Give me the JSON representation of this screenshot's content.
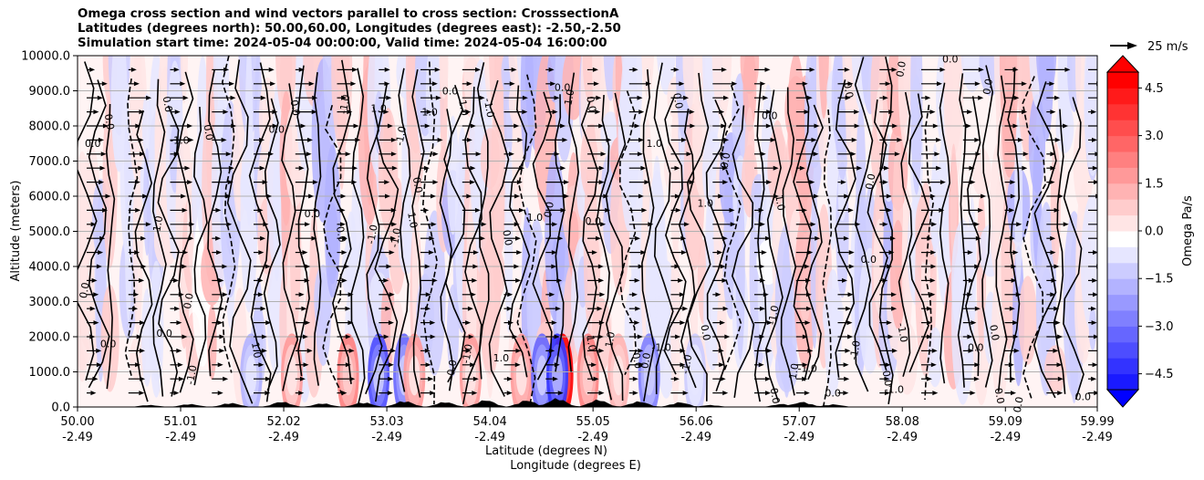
{
  "chart_data": {
    "type": "heatmap",
    "title_lines": [
      "Omega cross section and wind vectors parallel to cross section: CrosssectionA",
      "Latitudes (degrees north): 50.00,60.00, Longitudes (degrees east): -2.50,-2.50",
      "Simulation start time: 2024-05-04 00:00:00, Valid time: 2024-05-04 16:00:00"
    ],
    "ylabel": "Altitude (meters)",
    "xlabel_lat": "Latitude (degrees N)",
    "xlabel_lon": "Longitude (degrees E)",
    "ylim": [
      0,
      10000
    ],
    "xlim": [
      50.0,
      59.99
    ],
    "y_ticks": [
      "0.0",
      "1000.0",
      "2000.0",
      "3000.0",
      "4000.0",
      "5000.0",
      "6000.0",
      "7000.0",
      "8000.0",
      "9000.0",
      "10000.0"
    ],
    "y_tick_values": [
      0,
      1000,
      2000,
      3000,
      4000,
      5000,
      6000,
      7000,
      8000,
      9000,
      10000
    ],
    "x_ticks": [
      {
        "lat": "50.00",
        "lon": "-2.49",
        "v": 50.0
      },
      {
        "lat": "51.01",
        "lon": "-2.49",
        "v": 51.01
      },
      {
        "lat": "52.02",
        "lon": "-2.49",
        "v": 52.02
      },
      {
        "lat": "53.03",
        "lon": "-2.49",
        "v": 53.03
      },
      {
        "lat": "54.04",
        "lon": "-2.49",
        "v": 54.04
      },
      {
        "lat": "55.05",
        "lon": "-2.49",
        "v": 55.05
      },
      {
        "lat": "56.06",
        "lon": "-2.49",
        "v": 56.06
      },
      {
        "lat": "57.07",
        "lon": "-2.49",
        "v": 57.07
      },
      {
        "lat": "58.08",
        "lon": "-2.49",
        "v": 58.08
      },
      {
        "lat": "59.09",
        "lon": "-2.49",
        "v": 59.09
      },
      {
        "lat": "59.99",
        "lon": "-2.49",
        "v": 59.99
      }
    ],
    "grid": "horizontal",
    "colormap": "bwr",
    "colorbar": {
      "label": "Omega Pa/s",
      "range": [
        -5.0,
        5.0
      ],
      "ticks": [
        "4.5",
        "3.0",
        "1.5",
        "0.0",
        "−1.5",
        "−3.0",
        "−4.5"
      ],
      "tick_values": [
        4.5,
        3.0,
        1.5,
        0.0,
        -1.5,
        -3.0,
        -4.5
      ],
      "extend": "both"
    },
    "quiver_key": "25 m/s",
    "contour_levels": [
      -1.0,
      0.0,
      1.0
    ],
    "contour_labels": [
      {
        "text": "0.0",
        "lat": 50.15,
        "alt": 7400
      },
      {
        "text": "0.0",
        "lat": 50.28,
        "alt": 8100
      },
      {
        "text": "0.0",
        "lat": 50.1,
        "alt": 3300
      },
      {
        "text": "0.0",
        "lat": 50.3,
        "alt": 1700
      },
      {
        "text": "1.0",
        "lat": 50.82,
        "alt": 5200
      },
      {
        "text": "0.0",
        "lat": 50.85,
        "alt": 8600
      },
      {
        "text": "-1.0",
        "lat": 51.0,
        "alt": 7500
      },
      {
        "text": "0.0",
        "lat": 51.25,
        "alt": 7800
      },
      {
        "text": "0.0",
        "lat": 51.12,
        "alt": 3000
      },
      {
        "text": "0.0",
        "lat": 50.85,
        "alt": 2000
      },
      {
        "text": "-1.0",
        "lat": 51.15,
        "alt": 900
      },
      {
        "text": "1.0",
        "lat": 51.72,
        "alt": 1600
      },
      {
        "text": "0.0",
        "lat": 51.95,
        "alt": 7800
      },
      {
        "text": "0.0",
        "lat": 52.1,
        "alt": 8500
      },
      {
        "text": "-1.0",
        "lat": 52.65,
        "alt": 8600
      },
      {
        "text": "1.0",
        "lat": 52.95,
        "alt": 8400
      },
      {
        "text": "-1.0",
        "lat": 52.92,
        "alt": 4900
      },
      {
        "text": "0.0",
        "lat": 52.55,
        "alt": 4900
      },
      {
        "text": "0.0",
        "lat": 52.3,
        "alt": 5400
      },
      {
        "text": "1.0",
        "lat": 53.25,
        "alt": 5300
      },
      {
        "text": "-1.0",
        "lat": 53.15,
        "alt": 4800
      },
      {
        "text": "1.0",
        "lat": 53.45,
        "alt": 8300
      },
      {
        "text": "-1.0",
        "lat": 53.2,
        "alt": 7700
      },
      {
        "text": "0.0",
        "lat": 53.3,
        "alt": 6300
      },
      {
        "text": "0.0",
        "lat": 53.65,
        "alt": 8900
      },
      {
        "text": "1.0",
        "lat": 53.75,
        "alt": 8500
      },
      {
        "text": "-1.0",
        "lat": 53.85,
        "alt": 1500
      },
      {
        "text": "1.0",
        "lat": 54.15,
        "alt": 1300
      },
      {
        "text": "0.0",
        "lat": 53.7,
        "alt": 1100
      },
      {
        "text": "-1.0",
        "lat": 54.0,
        "alt": 8500
      },
      {
        "text": "1.0",
        "lat": 54.48,
        "alt": 5300
      },
      {
        "text": "0.0",
        "lat": 54.18,
        "alt": 4800
      },
      {
        "text": "0.0",
        "lat": 54.65,
        "alt": 5600
      },
      {
        "text": "0.0",
        "lat": 54.75,
        "alt": 9000
      },
      {
        "text": "1.0",
        "lat": 54.85,
        "alt": 8800
      },
      {
        "text": "0.0",
        "lat": 55.0,
        "alt": 8600
      },
      {
        "text": "0.0",
        "lat": 55.05,
        "alt": 5200
      },
      {
        "text": "1.0",
        "lat": 55.0,
        "alt": 1800
      },
      {
        "text": "1.0",
        "lat": 55.25,
        "alt": 1900
      },
      {
        "text": "-1.0",
        "lat": 55.72,
        "alt": 1600
      },
      {
        "text": "0.0",
        "lat": 55.6,
        "alt": 1300
      },
      {
        "text": "0.0",
        "lat": 55.45,
        "alt": 1300
      },
      {
        "text": "1.0",
        "lat": 55.65,
        "alt": 7400
      },
      {
        "text": "0.0",
        "lat": 55.85,
        "alt": 8700
      },
      {
        "text": "0.0",
        "lat": 56.38,
        "alt": 7000
      },
      {
        "text": "1.0",
        "lat": 56.15,
        "alt": 5700
      },
      {
        "text": "-1.0",
        "lat": 56.0,
        "alt": 1200
      },
      {
        "text": "0.0",
        "lat": 56.12,
        "alt": 2100
      },
      {
        "text": "0.0",
        "lat": 56.78,
        "alt": 8200
      },
      {
        "text": "1.0",
        "lat": 56.85,
        "alt": 5800
      },
      {
        "text": "-1.0",
        "lat": 56.85,
        "alt": 2600
      },
      {
        "text": "-1.0",
        "lat": 57.15,
        "alt": 1000
      },
      {
        "text": "1.0",
        "lat": 57.05,
        "alt": 1000
      },
      {
        "text": "0.0",
        "lat": 56.8,
        "alt": 300
      },
      {
        "text": "0.0",
        "lat": 57.4,
        "alt": 300
      },
      {
        "text": "0.0",
        "lat": 57.52,
        "alt": 9000
      },
      {
        "text": "0.0",
        "lat": 57.8,
        "alt": 6400
      },
      {
        "text": "0.0",
        "lat": 57.75,
        "alt": 4100
      },
      {
        "text": "-1.0",
        "lat": 57.65,
        "alt": 1600
      },
      {
        "text": "-1.0",
        "lat": 58.05,
        "alt": 2100
      },
      {
        "text": "-1.0",
        "lat": 58.0,
        "alt": 400
      },
      {
        "text": "0.0",
        "lat": 57.9,
        "alt": 800
      },
      {
        "text": "0.0",
        "lat": 58.1,
        "alt": 9600
      },
      {
        "text": "0.0",
        "lat": 58.55,
        "alt": 9800
      },
      {
        "text": "0.0",
        "lat": 58.95,
        "alt": 9100
      },
      {
        "text": "0.0",
        "lat": 58.95,
        "alt": 2100
      },
      {
        "text": "0.0",
        "lat": 58.8,
        "alt": 1600
      },
      {
        "text": "0.0",
        "lat": 59.0,
        "alt": 300
      },
      {
        "text": "0.0",
        "lat": 59.25,
        "alt": 50
      },
      {
        "text": "0.0",
        "lat": 59.85,
        "alt": 200
      }
    ]
  }
}
